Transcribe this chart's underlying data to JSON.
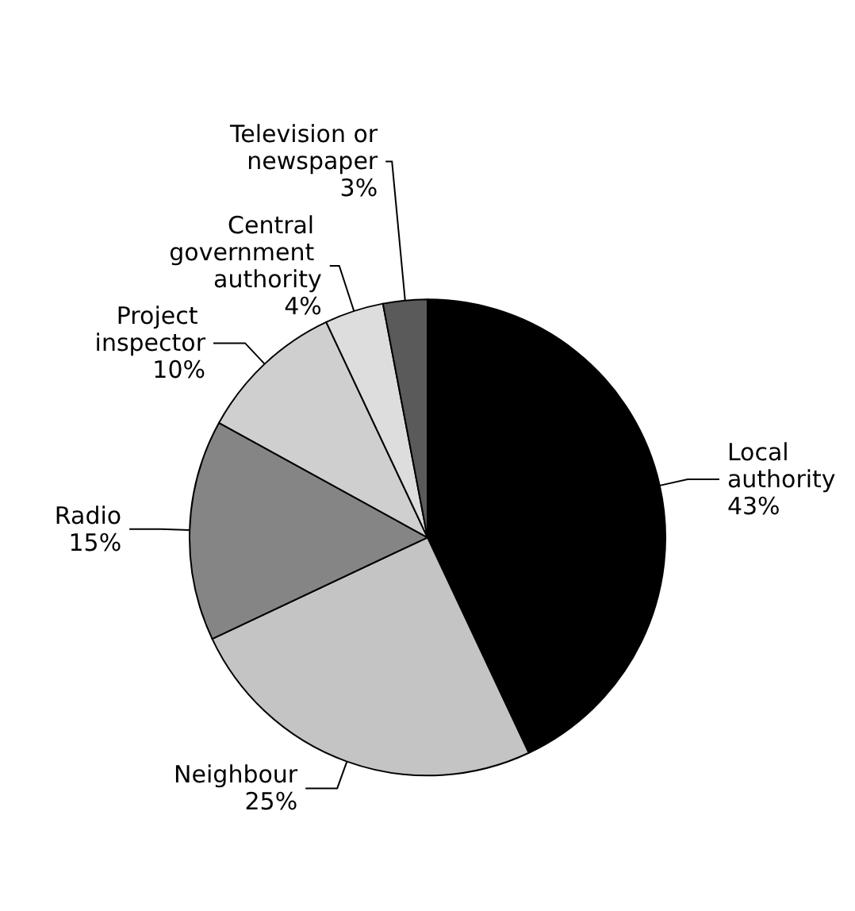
{
  "chart_data": {
    "type": "pie",
    "categories": [
      "Local authority",
      "Neighbour",
      "Radio",
      "Project inspector",
      "Central government authority",
      "Television or newspaper"
    ],
    "values": [
      43,
      25,
      15,
      10,
      4,
      3
    ],
    "value_labels": [
      "43%",
      "25%",
      "15%",
      "10%",
      "4%",
      "3%"
    ],
    "colors": [
      "#000000",
      "#c4c4c4",
      "#858585",
      "#cfcfcf",
      "#dddddd",
      "#5a5a5a"
    ],
    "legend": false
  }
}
